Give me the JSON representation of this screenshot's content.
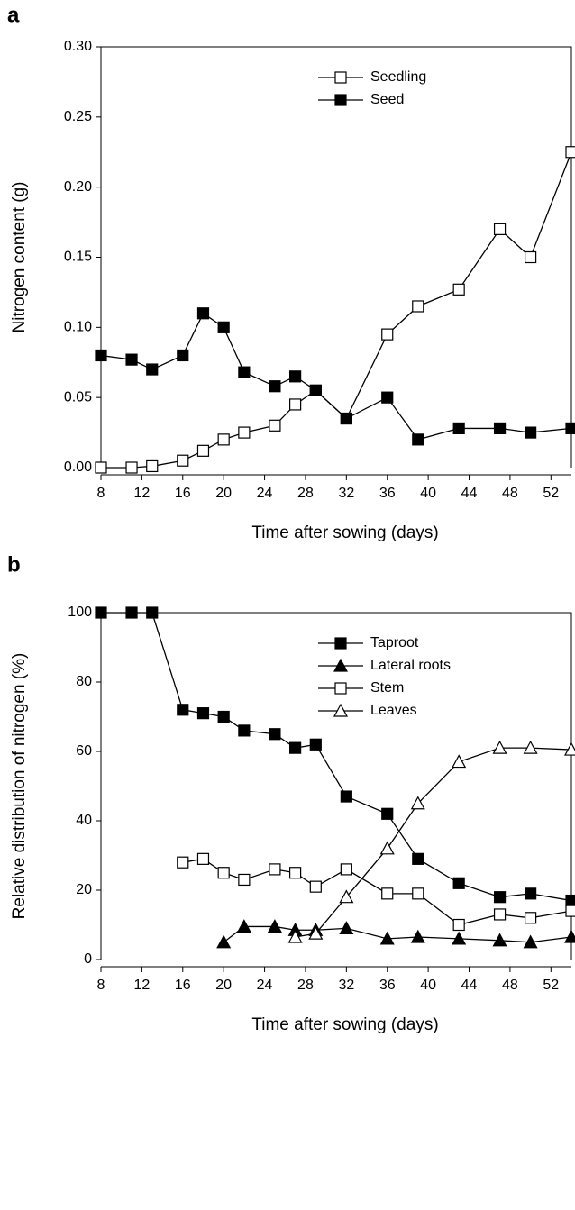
{
  "chart_data": [
    {
      "type": "line",
      "panel_label": "a",
      "x_label": "Time after sowing (days)",
      "y_label": "Nitrogen content (g)",
      "x": [
        8,
        11,
        13,
        16,
        18,
        20,
        22,
        25,
        27,
        29,
        32,
        36,
        39,
        43,
        47,
        50,
        54
      ],
      "series": [
        {
          "name": "Seedling",
          "color": "#000000",
          "marker": "square",
          "filled": false,
          "values": [
            0,
            0,
            0.001,
            0.005,
            0.012,
            0.02,
            0.025,
            0.03,
            0.045,
            0.055,
            0.035,
            0.095,
            0.115,
            0.127,
            0.17,
            0.15,
            0.225
          ]
        },
        {
          "name": "Seed",
          "color": "#000000",
          "marker": "square",
          "filled": true,
          "values": [
            0.08,
            0.077,
            0.07,
            0.08,
            0.11,
            0.1,
            0.068,
            0.058,
            0.065,
            0.055,
            0.035,
            0.05,
            0.02,
            0.028,
            0.028,
            0.025,
            0.028
          ]
        }
      ],
      "xlim": [
        8,
        54
      ],
      "xticks": [
        8,
        12,
        16,
        20,
        24,
        28,
        32,
        36,
        40,
        44,
        48,
        52
      ],
      "ylim": [
        0,
        0.3
      ],
      "yticks": [
        {
          "value": 0,
          "label": "0.00"
        },
        0.05,
        {
          "value": 0.1,
          "label": "0.10"
        },
        0.15,
        {
          "value": 0.2,
          "label": "0.20"
        },
        0.25,
        {
          "value": 0.3,
          "label": "0.30"
        }
      ],
      "legend": "upper center"
    },
    {
      "type": "line",
      "panel_label": "b",
      "x_label": "Time after sowing (days)",
      "y_label": "Relative distribution of nitrogen (%)",
      "x": [
        8,
        11,
        13,
        16,
        18,
        20,
        22,
        25,
        27,
        29,
        32,
        36,
        39,
        43,
        47,
        50,
        54
      ],
      "series": [
        {
          "name": "Taproot",
          "color": "#000000",
          "marker": "square",
          "filled": true,
          "values": [
            100,
            100,
            100,
            72,
            71,
            70,
            66,
            65,
            61,
            62,
            47,
            42,
            29,
            22,
            18,
            19,
            17
          ]
        },
        {
          "name": "Lateral roots",
          "color": "#000000",
          "marker": "triangle",
          "filled": true,
          "values": [
            null,
            null,
            null,
            null,
            null,
            5,
            9.5,
            9.5,
            8.5,
            8.5,
            9,
            6,
            6.5,
            6,
            5.5,
            5,
            6.5
          ]
        },
        {
          "name": "Stem",
          "color": "#000000",
          "marker": "square",
          "filled": false,
          "values": [
            null,
            null,
            null,
            28,
            29,
            25,
            23,
            26,
            25,
            21,
            26,
            19,
            19,
            10,
            13,
            12,
            14
          ]
        },
        {
          "name": "Leaves",
          "color": "#000000",
          "marker": "triangle",
          "filled": false,
          "values": [
            null,
            null,
            null,
            null,
            null,
            null,
            null,
            null,
            6.5,
            7.5,
            18,
            32,
            45,
            57,
            61,
            61,
            60.5
          ]
        }
      ],
      "xlim": [
        8,
        54
      ],
      "xticks": [
        8,
        12,
        16,
        20,
        24,
        28,
        32,
        36,
        40,
        44,
        48,
        52
      ],
      "ylim": [
        0,
        100
      ],
      "yticks": [
        0,
        20,
        40,
        60,
        80,
        100
      ],
      "legend": "upper center"
    }
  ]
}
